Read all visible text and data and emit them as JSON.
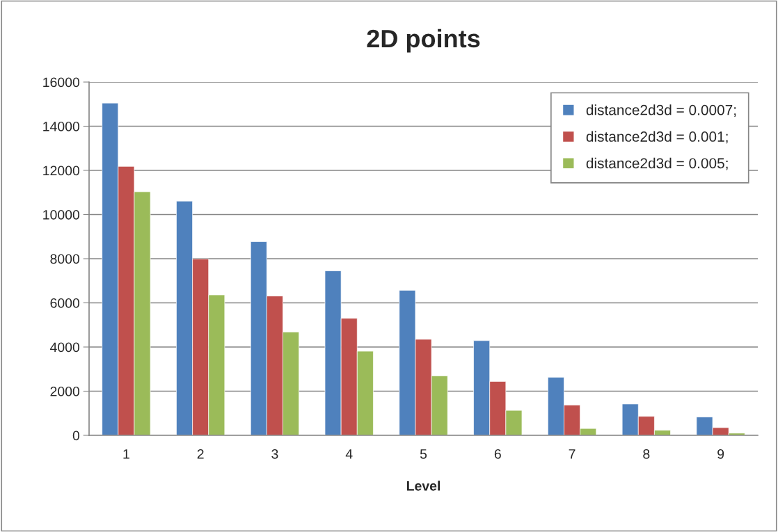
{
  "chart_data": {
    "type": "bar",
    "title": "2D points",
    "xlabel": "Level",
    "categories": [
      "1",
      "2",
      "3",
      "4",
      "5",
      "6",
      "7",
      "8",
      "9"
    ],
    "series": [
      {
        "name": "distance2d3d = 0.0007;",
        "color": "#4f81bd",
        "values": [
          15050,
          10610,
          8770,
          7450,
          6570,
          4290,
          2630,
          1420,
          830
        ]
      },
      {
        "name": "distance2d3d = 0.001;",
        "color": "#c0504d",
        "values": [
          12180,
          7990,
          6310,
          5300,
          4350,
          2440,
          1370,
          860,
          350
        ]
      },
      {
        "name": "distance2d3d = 0.005;",
        "color": "#9bbb59",
        "values": [
          11030,
          6360,
          4680,
          3810,
          2690,
          1130,
          310,
          230,
          100
        ]
      }
    ],
    "ylim": [
      0,
      16000
    ],
    "yticks": [
      0,
      2000,
      4000,
      6000,
      8000,
      10000,
      12000,
      14000,
      16000
    ],
    "grid": "y",
    "legend": "top right"
  }
}
